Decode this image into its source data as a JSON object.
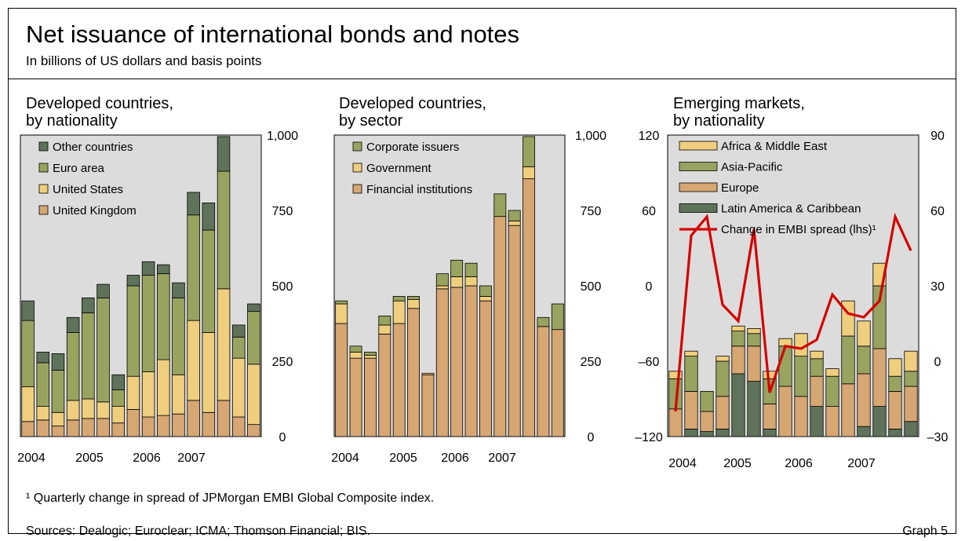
{
  "header": {
    "title": "Net issuance of international bonds and notes",
    "subtitle": "In billions of US dollars and basis points"
  },
  "footer": {
    "footnote": "¹  Quarterly change in spread of JPMorgan EMBI Global Composite index.",
    "sources": "Sources: Dealogic; Euroclear; ICMA; Thomson Financial; BIS.",
    "graph_label": "Graph 5"
  },
  "colors": {
    "plot_bg": "#dcdcdc",
    "dark_green": "#5f735a",
    "olive": "#99a360",
    "light_yellow": "#efce7d",
    "tan": "#d6a673",
    "red": "#d40000"
  },
  "chart_data": [
    {
      "id": "dev-nationality",
      "type": "bar",
      "stacked": true,
      "title_lines": [
        "Developed countries,",
        "by nationality"
      ],
      "x_labels": [
        "2004",
        "2005",
        "2006",
        "2007"
      ],
      "quarters": [
        "2004Q1",
        "2004Q2",
        "2004Q3",
        "2004Q4",
        "2005Q1",
        "2005Q2",
        "2005Q3",
        "2005Q4",
        "2006Q1",
        "2006Q2",
        "2006Q3",
        "2006Q4",
        "2007Q1",
        "2007Q2",
        "2007Q3",
        "2007Q4"
      ],
      "series": [
        {
          "name": "United Kingdom",
          "color": "#d6a673",
          "values": [
            50,
            55,
            35,
            55,
            60,
            60,
            45,
            90,
            65,
            70,
            75,
            120,
            80,
            120,
            65,
            40
          ]
        },
        {
          "name": "United States",
          "color": "#efce7d",
          "values": [
            115,
            45,
            45,
            65,
            65,
            55,
            55,
            110,
            150,
            185,
            130,
            265,
            265,
            370,
            195,
            200
          ]
        },
        {
          "name": "Euro area",
          "color": "#99a360",
          "values": [
            220,
            145,
            140,
            225,
            285,
            345,
            55,
            300,
            320,
            285,
            255,
            350,
            340,
            390,
            70,
            175
          ]
        },
        {
          "name": "Other countries",
          "color": "#5f735a",
          "values": [
            65,
            35,
            55,
            50,
            50,
            45,
            50,
            35,
            45,
            30,
            50,
            75,
            90,
            115,
            40,
            25
          ]
        }
      ],
      "y_ticks": [
        "0",
        "250",
        "500",
        "750",
        "1,000"
      ],
      "y_min": 0,
      "y_max": 1000
    },
    {
      "id": "dev-sector",
      "type": "bar",
      "stacked": true,
      "title_lines": [
        "Developed countries,",
        "by sector"
      ],
      "x_labels": [
        "2004",
        "2005",
        "2006",
        "2007"
      ],
      "quarters": [
        "2004Q1",
        "2004Q2",
        "2004Q3",
        "2004Q4",
        "2005Q1",
        "2005Q2",
        "2005Q3",
        "2005Q4",
        "2006Q1",
        "2006Q2",
        "2006Q3",
        "2006Q4",
        "2007Q1",
        "2007Q2",
        "2007Q3",
        "2007Q4"
      ],
      "series": [
        {
          "name": "Financial institutions",
          "color": "#d6a673",
          "values": [
            375,
            260,
            260,
            340,
            375,
            425,
            205,
            490,
            495,
            500,
            450,
            730,
            700,
            855,
            365,
            355
          ]
        },
        {
          "name": "Government",
          "color": "#efce7d",
          "values": [
            65,
            20,
            10,
            30,
            75,
            30,
            5,
            10,
            35,
            30,
            15,
            0,
            15,
            40,
            0,
            0
          ]
        },
        {
          "name": "Corporate issuers",
          "color": "#99a360",
          "values": [
            10,
            20,
            10,
            30,
            15,
            10,
            0,
            40,
            55,
            45,
            35,
            75,
            35,
            100,
            30,
            85
          ]
        }
      ],
      "y_ticks": [
        "0",
        "250",
        "500",
        "750",
        "1,000"
      ],
      "y_min": 0,
      "y_max": 1000
    },
    {
      "id": "em-nationality",
      "type": "bar",
      "stacked": true,
      "title_lines": [
        "Emerging markets,",
        "by nationality"
      ],
      "x_labels": [
        "2004",
        "2005",
        "2006",
        "2007"
      ],
      "quarters": [
        "2004Q1",
        "2004Q2",
        "2004Q3",
        "2004Q4",
        "2005Q1",
        "2005Q2",
        "2005Q3",
        "2005Q4",
        "2006Q1",
        "2006Q2",
        "2006Q3",
        "2006Q4",
        "2007Q1",
        "2007Q2",
        "2007Q3",
        "2007Q4"
      ],
      "series": [
        {
          "name": "Latin America & Caribbean",
          "color": "#5f735a",
          "values": [
            0,
            3,
            2,
            3,
            25,
            22,
            3,
            0,
            0,
            12,
            0,
            0,
            4,
            12,
            3,
            6
          ]
        },
        {
          "name": "Europe",
          "color": "#d6a673",
          "values": [
            11,
            15,
            8,
            13,
            11,
            14,
            10,
            20,
            16,
            12,
            12,
            21,
            21,
            23,
            15,
            14
          ]
        },
        {
          "name": "Asia-Pacific",
          "color": "#99a360",
          "values": [
            12,
            14,
            8,
            14,
            6,
            5,
            10,
            16,
            16,
            7,
            12,
            19,
            11,
            25,
            6,
            6
          ]
        },
        {
          "name": "Africa & Middle East",
          "color": "#efce7d",
          "values": [
            3,
            2,
            0,
            2,
            2,
            2,
            3,
            3,
            9,
            3,
            3,
            14,
            10,
            9,
            7,
            8
          ]
        }
      ],
      "bar_offset": -30,
      "bar_axis": "right",
      "y_right_ticks": [
        "–30",
        "0",
        "30",
        "60",
        "90"
      ],
      "y_right_min": -30,
      "y_right_max": 90,
      "line_series": {
        "name": "Change in EMBI spread (lhs)¹",
        "color": "#d40000",
        "values": [
          -100,
          40,
          55,
          -15,
          -28,
          45,
          -85,
          -48,
          -50,
          -43,
          -7,
          -22,
          -25,
          -12,
          55,
          28
        ]
      },
      "y_left_ticks": [
        "–120",
        "–60",
        "0",
        "60",
        "120"
      ],
      "y_left_min": -120,
      "y_left_max": 120
    }
  ]
}
